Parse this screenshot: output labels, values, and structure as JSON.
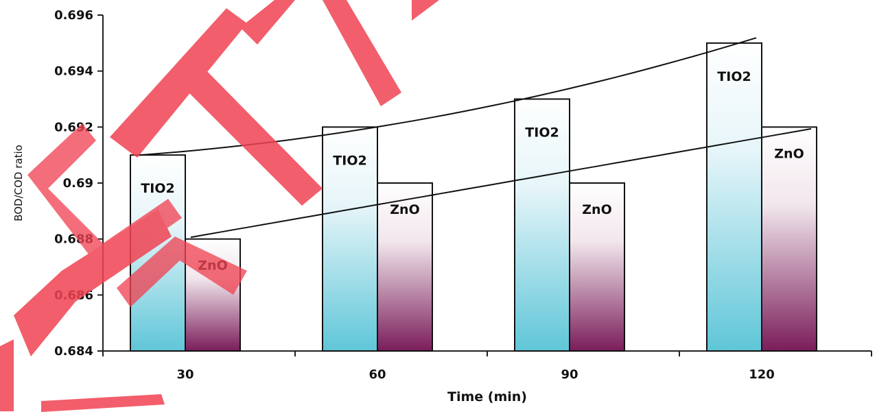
{
  "chart_data": {
    "type": "bar",
    "categories": [
      "30",
      "60",
      "90",
      "120"
    ],
    "series": [
      {
        "name": "TIO2",
        "values": [
          0.691,
          0.692,
          0.693,
          0.695
        ]
      },
      {
        "name": "ZnO",
        "values": [
          0.688,
          0.69,
          0.69,
          0.692
        ]
      }
    ],
    "bar_labels": [
      "TIO2",
      "ZnO"
    ],
    "xlabel": "Time (min)",
    "ylabel": "BOD/COD ratio",
    "ylim": [
      0.684,
      0.696
    ],
    "y_ticks": [
      "0.684",
      "0.686",
      "0.688",
      "0.69",
      "0.692",
      "0.694",
      "0.696"
    ],
    "trendlines": true,
    "grid": false,
    "legend": "none",
    "colors": {
      "TIO2_gradient": [
        "#ffffff",
        "#5fc6d8"
      ],
      "ZnO_gradient": [
        "#ffffff",
        "#7a1d5a"
      ],
      "watermark": "#f03a4a"
    },
    "watermark": "RETRACTED"
  }
}
